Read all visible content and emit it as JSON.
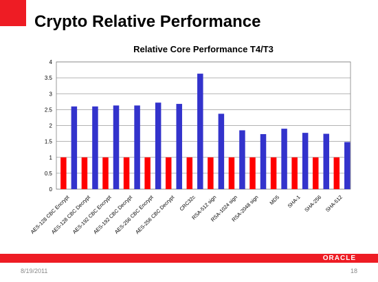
{
  "slide": {
    "title": "Crypto Relative Performance",
    "footer_date": "8/19/2011",
    "page_number": "18",
    "logo_text": "ORACLE",
    "accent_color": "#ee1c24"
  },
  "chart_data": {
    "type": "bar",
    "title": "Relative Core Performance T4/T3",
    "categories": [
      "AES-128 CBC Encrypt",
      "AES-128 CBC Decrypt",
      "AES-192 CBC Encrypt",
      "AES-192 CBC Decrypt",
      "AES-256 CBC Encrypt",
      "AES-256 CBC Decrypt",
      "CRC32c",
      "RSA-512 sign",
      "RSA-1024 sign",
      "RSA-2048 sign",
      "MD5",
      "SHA-1",
      "SHA-256",
      "SHA-512"
    ],
    "series": [
      {
        "color": "#ff0000",
        "values": [
          1,
          1,
          1,
          1,
          1,
          1,
          1,
          1,
          1,
          1,
          1,
          1,
          1,
          1
        ]
      },
      {
        "color": "#3333cc",
        "values": [
          2.6,
          2.6,
          2.63,
          2.63,
          2.72,
          2.68,
          3.63,
          2.37,
          1.85,
          1.73,
          1.9,
          1.77,
          1.74,
          1.48
        ]
      }
    ],
    "ylim": [
      0,
      4
    ],
    "yticks": [
      "0",
      "0.5",
      "1",
      "1.5",
      "2",
      "2.5",
      "3",
      "3.5",
      "4"
    ],
    "grid": true,
    "legend": "none"
  }
}
